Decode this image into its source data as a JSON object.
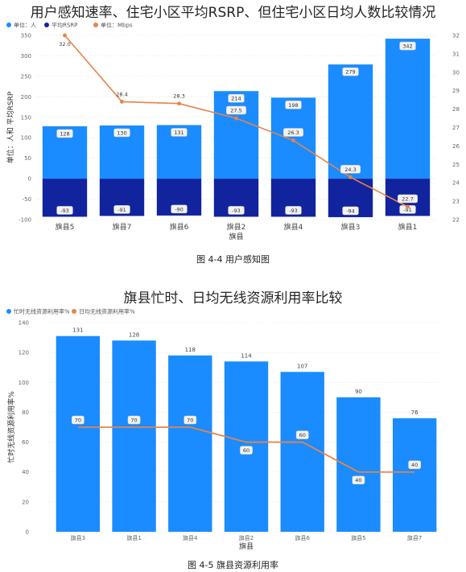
{
  "colors": {
    "bar_blue": "#1a8cff",
    "bar_dark": "#12239e",
    "line_orange": "#e8834a",
    "grid": "#e8e8e8"
  },
  "chart_data": [
    {
      "type": "bar",
      "title": "用户感知速率、住宅小区平均RSRP、但住宅小区日均人数比较情况",
      "xlabel": "旗县",
      "ylabel": "单位：人和 平均RSRP",
      "categories": [
        "旗县5",
        "旗县7",
        "旗县6",
        "旗县2",
        "旗县4",
        "旗县3",
        "旗县1"
      ],
      "ylim": [
        -100,
        350
      ],
      "yticks": [
        -100,
        -50,
        0,
        50,
        100,
        150,
        200,
        250,
        300,
        350
      ],
      "y2lim": [
        22,
        32
      ],
      "y2ticks": [
        22,
        23,
        24,
        25,
        26,
        27,
        28,
        29,
        30,
        31,
        32
      ],
      "legend_placement": "top-left",
      "series": [
        {
          "name": "单位：人",
          "kind": "bar",
          "axis": "left",
          "color": "#1a8cff",
          "values": [
            128,
            130,
            131,
            214,
            198,
            279,
            342
          ]
        },
        {
          "name": "平均RSRP",
          "kind": "bar",
          "axis": "left",
          "color": "#12239e",
          "values": [
            -93,
            -91,
            -90,
            -93,
            -93,
            -94,
            -91
          ]
        },
        {
          "name": "单位：Mbps",
          "kind": "line",
          "axis": "right",
          "color": "#e8834a",
          "values": [
            32.0,
            28.4,
            28.3,
            27.5,
            26.3,
            24.3,
            22.7
          ]
        }
      ],
      "caption": "图 4-4 用户感知图"
    },
    {
      "type": "bar",
      "title": "旗县忙时、日均无线资源利用率比较",
      "xlabel": "旗县",
      "ylabel": "忙时无线资源利用率%",
      "categories": [
        "旗县3",
        "旗县1",
        "旗县4",
        "旗县2",
        "旗县6",
        "旗县5",
        "旗县7"
      ],
      "ylim": [
        0,
        140
      ],
      "yticks": [
        0,
        20,
        40,
        60,
        80,
        100,
        120,
        140
      ],
      "legend_placement": "top-left",
      "series": [
        {
          "name": "忙时无线资源利用率%",
          "kind": "bar",
          "color": "#1a8cff",
          "values": [
            131,
            128,
            118,
            114,
            107,
            90,
            76
          ]
        },
        {
          "name": "日均无线资源利用率%",
          "kind": "line",
          "color": "#e8834a",
          "values": [
            70,
            70,
            70,
            60,
            60,
            40,
            40
          ]
        }
      ],
      "caption": "图 4-5 旗县资源利用率"
    }
  ]
}
